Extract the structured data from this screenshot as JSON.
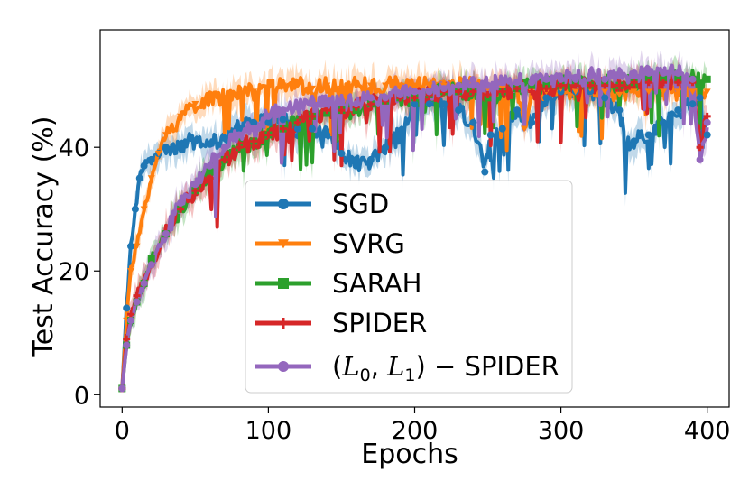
{
  "chart_data": {
    "type": "line",
    "title": "",
    "xlabel": "Epochs",
    "ylabel": "Test Accuracy (%)",
    "xlim": [
      -15,
      415
    ],
    "ylim": [
      -2,
      59
    ],
    "xticks": [
      0,
      100,
      200,
      300,
      400
    ],
    "yticks": [
      0,
      20,
      40
    ],
    "grid": false,
    "legend_position": "lower-center",
    "series": [
      {
        "name": "SGD",
        "color": "#1f77b4",
        "marker": "circle",
        "x": [
          0,
          3,
          6,
          9,
          12,
          15,
          20,
          25,
          30,
          40,
          50,
          60,
          70,
          80,
          90,
          100,
          110,
          120,
          130,
          140,
          150,
          160,
          170,
          180,
          190,
          200,
          210,
          220,
          230,
          240,
          248,
          252,
          260,
          270,
          280,
          290,
          300,
          310,
          320,
          330,
          340,
          345,
          350,
          360,
          370,
          380,
          390,
          395,
          400
        ],
        "values": [
          1,
          14,
          24,
          30,
          35,
          37,
          38,
          39,
          40,
          40.5,
          41,
          40.5,
          41.5,
          43,
          44,
          44,
          44.5,
          43,
          43,
          42,
          39,
          37,
          38,
          40,
          42,
          47,
          47,
          47,
          46,
          44,
          36,
          42,
          43,
          46,
          44,
          48,
          49,
          49,
          49,
          48,
          46,
          40,
          41,
          42,
          44,
          46,
          47,
          48,
          42
        ]
      },
      {
        "name": "SVRG",
        "color": "#ff7f0e",
        "marker": "triangle-down",
        "x": [
          0,
          3,
          6,
          10,
          15,
          20,
          25,
          30,
          40,
          50,
          60,
          70,
          80,
          90,
          100,
          110,
          120,
          130,
          140,
          150,
          160,
          170,
          180,
          190,
          200,
          210,
          220,
          230,
          240,
          250,
          260,
          270,
          275,
          280,
          290,
          300,
          310,
          320,
          330,
          340,
          350,
          360,
          370,
          380,
          390,
          400
        ],
        "values": [
          1,
          12,
          20,
          24,
          30,
          35,
          39,
          42,
          45,
          47,
          47.5,
          48,
          48.5,
          49,
          49.5,
          50,
          50,
          49.5,
          50,
          49.5,
          50,
          50,
          50,
          50,
          50,
          50,
          50,
          50,
          50,
          49.5,
          49.5,
          49,
          43,
          49,
          49,
          49.5,
          49,
          49.5,
          49,
          48.5,
          49,
          49,
          49,
          49,
          49,
          49
        ]
      },
      {
        "name": "SARAH",
        "color": "#2ca02c",
        "marker": "square",
        "x": [
          0,
          3,
          6,
          10,
          15,
          20,
          30,
          40,
          50,
          60,
          70,
          80,
          90,
          100,
          110,
          120,
          130,
          140,
          150,
          160,
          170,
          180,
          190,
          200,
          210,
          220,
          230,
          240,
          250,
          260,
          270,
          280,
          290,
          300,
          310,
          320,
          330,
          340,
          350,
          360,
          370,
          380,
          390,
          400
        ],
        "values": [
          1,
          8,
          12,
          15,
          18,
          22,
          26,
          30,
          33,
          36,
          38,
          40,
          41,
          42,
          43,
          44,
          45,
          45.5,
          46,
          46,
          47,
          47.5,
          48,
          48,
          48.5,
          49,
          49,
          49,
          48,
          49,
          49.5,
          50,
          50,
          50,
          50.5,
          50,
          50.5,
          50,
          50.5,
          51,
          51,
          51,
          51,
          51
        ]
      },
      {
        "name": "SPIDER",
        "color": "#d62728",
        "marker": "plus",
        "x": [
          0,
          3,
          6,
          10,
          15,
          20,
          30,
          40,
          50,
          60,
          70,
          80,
          90,
          100,
          110,
          120,
          130,
          140,
          150,
          160,
          170,
          180,
          190,
          200,
          210,
          220,
          230,
          240,
          250,
          260,
          270,
          280,
          290,
          300,
          310,
          320,
          330,
          340,
          350,
          360,
          370,
          380,
          390,
          395,
          400
        ],
        "values": [
          1,
          9,
          13,
          16,
          18,
          21,
          26,
          30,
          33,
          35,
          38,
          40,
          41,
          42,
          43,
          44,
          45,
          46,
          46,
          46.5,
          47,
          47.5,
          48,
          48,
          48.5,
          49,
          49,
          49,
          48.5,
          49,
          49.5,
          49,
          49.5,
          50,
          50,
          50,
          50,
          50,
          50.5,
          50.5,
          50.5,
          50.5,
          50.5,
          40,
          45
        ]
      },
      {
        "name": "(L_0, L_1) − SPIDER",
        "color": "#9467bd",
        "marker": "circle",
        "x": [
          0,
          3,
          6,
          10,
          15,
          20,
          30,
          40,
          50,
          60,
          70,
          80,
          90,
          100,
          110,
          120,
          130,
          140,
          150,
          160,
          170,
          180,
          190,
          200,
          210,
          220,
          230,
          240,
          250,
          260,
          270,
          280,
          290,
          300,
          310,
          320,
          330,
          340,
          350,
          360,
          370,
          380,
          390,
          395,
          400
        ],
        "values": [
          1,
          8,
          12,
          15,
          18,
          21,
          26,
          31,
          34,
          37,
          40,
          42,
          43,
          45,
          46,
          46.5,
          47,
          47,
          47.5,
          47,
          48,
          48,
          48.5,
          49,
          49,
          49.5,
          50,
          50,
          50,
          50.5,
          50.5,
          50.5,
          51,
          51,
          51,
          51.5,
          51,
          51.5,
          52,
          52,
          52,
          52,
          51,
          38,
          44
        ]
      }
    ]
  },
  "legend": {
    "entries": [
      {
        "label": "SGD"
      },
      {
        "label": "SVRG"
      },
      {
        "label": "SARAH"
      },
      {
        "label": "SPIDER"
      },
      {
        "label_prefix": "(",
        "sym1": "L",
        "sub1": "0",
        "sep": ", ",
        "sym2": "L",
        "sub2": "1",
        "label_suffix": ") − SPIDER"
      }
    ]
  }
}
